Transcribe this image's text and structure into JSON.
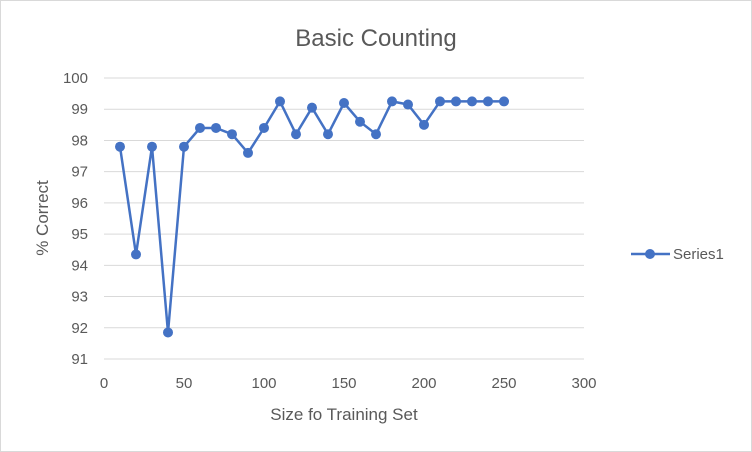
{
  "chart_data": {
    "type": "line",
    "title": "Basic Counting",
    "xlabel": "Size fo Training Set",
    "ylabel": "% Correct",
    "xlim": [
      0,
      300
    ],
    "ylim": [
      91,
      100
    ],
    "x_ticks": [
      "0",
      "50",
      "100",
      "150",
      "200",
      "250",
      "300"
    ],
    "y_ticks": [
      "91",
      "92",
      "93",
      "94",
      "95",
      "96",
      "97",
      "98",
      "99",
      "100"
    ],
    "grid": "horizontal",
    "legend_position": "right",
    "series": [
      {
        "name": "Series1",
        "color": "#4472c4",
        "marker": "circle",
        "x": [
          10,
          20,
          30,
          40,
          50,
          60,
          70,
          80,
          90,
          100,
          110,
          120,
          130,
          140,
          150,
          160,
          170,
          180,
          190,
          200,
          210,
          220,
          230,
          240,
          250
        ],
        "y": [
          97.8,
          94.35,
          97.8,
          91.85,
          97.8,
          98.4,
          98.4,
          98.2,
          97.6,
          98.4,
          99.25,
          98.2,
          99.05,
          98.2,
          99.2,
          98.6,
          98.2,
          99.25,
          99.15,
          98.5,
          99.25,
          99.25,
          99.25,
          99.25,
          99.25
        ]
      }
    ]
  }
}
